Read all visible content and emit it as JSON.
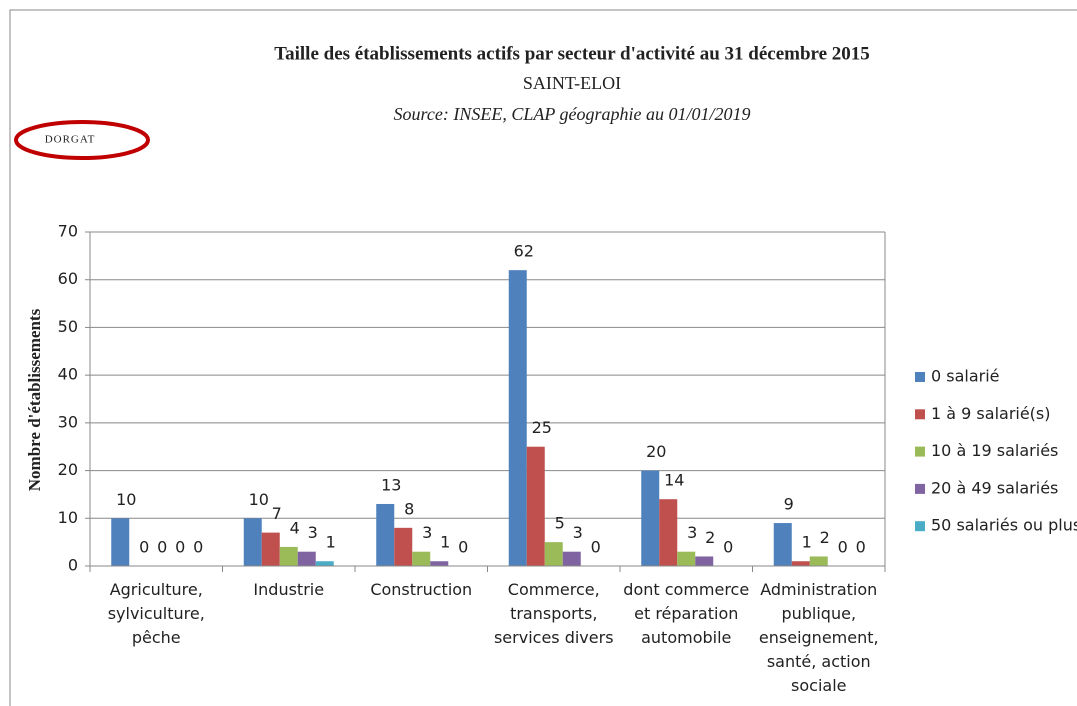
{
  "chart_data": {
    "type": "bar",
    "title": "Taille des établissements actifs par secteur d'activité au 31 décembre 2015",
    "subtitle": "SAINT-ELOI",
    "source": "Source: INSEE, CLAP géographie au 01/01/2019",
    "logo": "DORGAT",
    "y_label": "Nombre d'établissements",
    "categories": [
      "Agriculture, sylviculture, pêche",
      "Industrie",
      "Construction",
      "Commerce, transports, services divers",
      "dont commerce et réparation automobile",
      "Administration publique, enseignement, santé, action sociale"
    ],
    "series": [
      {
        "name": "0 salarié",
        "color": "#4f81bd",
        "values": [
          10,
          10,
          13,
          62,
          20,
          9
        ]
      },
      {
        "name": "1 à 9 salarié(s)",
        "color": "#c0504d",
        "values": [
          0,
          7,
          8,
          25,
          14,
          1
        ]
      },
      {
        "name": "10 à 19 salariés",
        "color": "#9bbb59",
        "values": [
          0,
          4,
          3,
          5,
          3,
          2
        ]
      },
      {
        "name": "20 à 49 salariés",
        "color": "#8064a2",
        "values": [
          0,
          3,
          1,
          3,
          2,
          0
        ]
      },
      {
        "name": "50 salariés ou plus",
        "color": "#4bacc6",
        "values": [
          0,
          1,
          0,
          0,
          0,
          0
        ]
      }
    ],
    "ylim": [
      0,
      70
    ],
    "yticks": [
      0,
      10,
      20,
      30,
      40,
      50,
      60,
      70
    ],
    "grid": true,
    "legend": "right"
  }
}
